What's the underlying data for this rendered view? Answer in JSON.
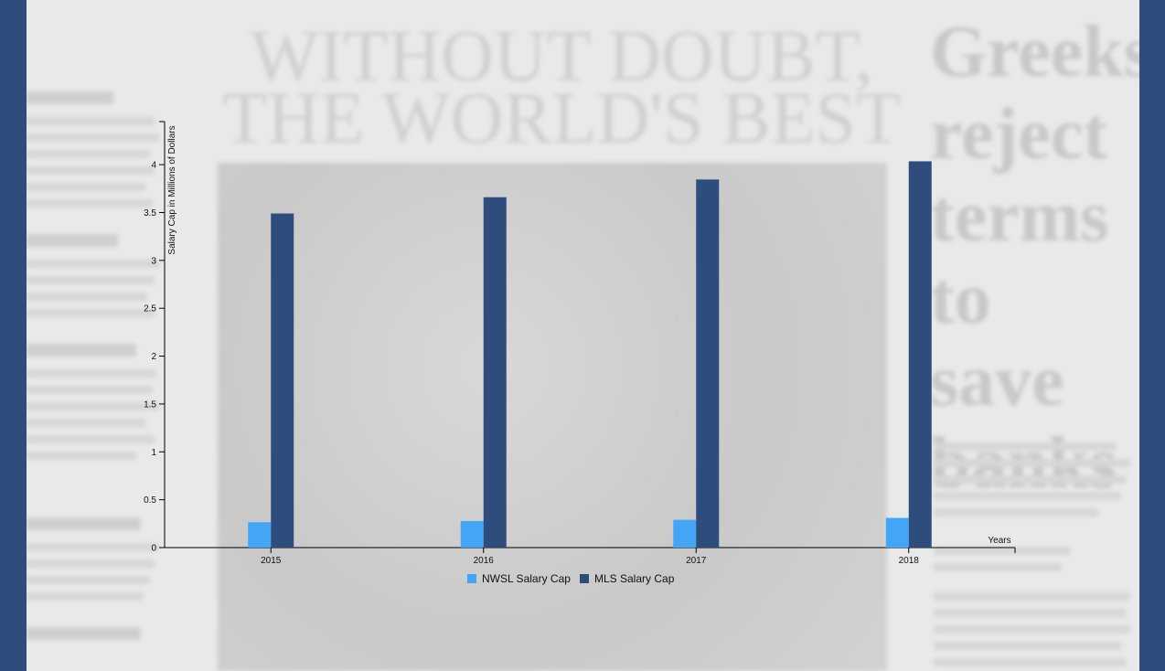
{
  "background": {
    "headline": [
      "WITHOUT DOUBT,",
      "THE WORLD'S BEST"
    ],
    "side_headline": [
      "Greeks",
      "reject",
      "terms",
      "to save",
      "banks"
    ]
  },
  "colors": {
    "nwsl": "#42a5f5",
    "mls": "#2e4c7c",
    "frame": "#2e4c7c",
    "page": "#e9e9e9"
  },
  "chart_data": {
    "type": "bar",
    "categories": [
      "2015",
      "2016",
      "2017",
      "2018"
    ],
    "series": [
      {
        "name": "NWSL Salary Cap",
        "color": "#42a5f5",
        "values": [
          0.265,
          0.278,
          0.29,
          0.31
        ]
      },
      {
        "name": "MLS Salary Cap",
        "color": "#2e4c7c",
        "values": [
          3.49,
          3.66,
          3.845,
          4.035
        ]
      }
    ],
    "title": "",
    "xlabel": "Years",
    "ylabel": "Salary Cap in Millions of Dollars",
    "ylim": [
      0,
      4.45
    ],
    "yticks": [
      0,
      0.5,
      1,
      1.5,
      2,
      2.5,
      3,
      3.5,
      4
    ],
    "ytick_labels": [
      "0",
      "0.5",
      "1",
      "1.5",
      "2",
      "2.5",
      "3",
      "3.5",
      "4"
    ],
    "legend_position": "bottom-center",
    "grid": false
  }
}
